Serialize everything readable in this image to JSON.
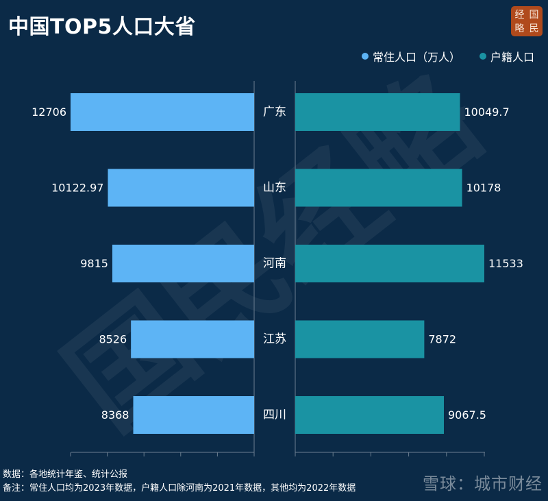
{
  "title": "中国TOP5人口大省",
  "logo": [
    "经",
    "国",
    "略",
    "民"
  ],
  "watermark": "国民经略",
  "colors": {
    "background": "#0b2a47",
    "resident": "#5db4f5",
    "registered": "#1a93a3",
    "axis": "#6c7f91"
  },
  "legend": {
    "resident": "常住人口（万人）",
    "registered": "户籍人口"
  },
  "chart_data": {
    "type": "bar",
    "orientation": "horizontal-butterfly",
    "categories": [
      "广东",
      "山东",
      "河南",
      "江苏",
      "四川"
    ],
    "series": [
      {
        "name": "常住人口（万人）",
        "values": [
          12706,
          10122.97,
          9815,
          8526,
          8368
        ],
        "labels": [
          "12706",
          "10122.97",
          "9815",
          "8526",
          "8368"
        ]
      },
      {
        "name": "户籍人口",
        "values": [
          10049.7,
          10178,
          11533,
          7872,
          9067.5
        ],
        "labels": [
          "10049.7",
          "10178",
          "11533",
          "7872",
          "9067.5"
        ]
      }
    ],
    "xlim_left": [
      0,
      12706
    ],
    "xlim_right": [
      0,
      11533
    ]
  },
  "footer": {
    "line1": "数据：各地统计年鉴、统计公报",
    "line2": "备注：常住人口均为2023年数据，户籍人口除河南为2021年数据，其他均为2022年数据"
  },
  "source_watermark": "雪球：城市财经"
}
